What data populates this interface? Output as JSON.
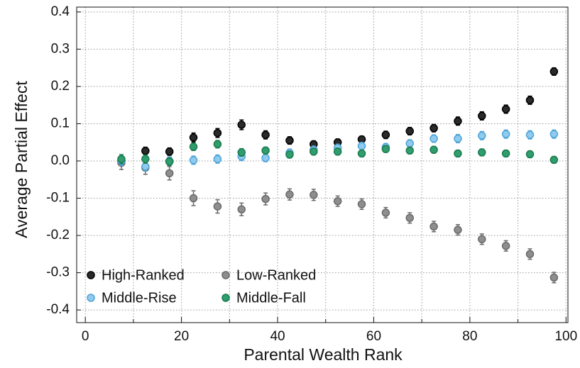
{
  "chart_data": {
    "type": "scatter",
    "x_label": "Parental Wealth Rank",
    "y_label": "Average Partial Effect",
    "x": [
      7.5,
      12.5,
      17.5,
      22.5,
      27.5,
      32.5,
      37.5,
      42.5,
      47.5,
      52.5,
      57.5,
      62.5,
      67.5,
      72.5,
      77.5,
      82.5,
      87.5,
      92.5,
      97.5
    ],
    "series": [
      {
        "name": "High-Ranked",
        "color": "#2a2a2a",
        "edge": "#000000",
        "values": [
          0.0,
          0.027,
          0.025,
          0.063,
          0.075,
          0.097,
          0.07,
          0.055,
          0.045,
          0.05,
          0.058,
          0.07,
          0.08,
          0.088,
          0.107,
          0.121,
          0.139,
          0.163,
          0.24
        ],
        "errors": [
          0.012,
          0.01,
          0.01,
          0.012,
          0.012,
          0.013,
          0.011,
          0.01,
          0.009,
          0.009,
          0.009,
          0.01,
          0.01,
          0.01,
          0.011,
          0.011,
          0.011,
          0.011,
          0.01
        ]
      },
      {
        "name": "Low-Ranked",
        "color": "#8e8e8e",
        "edge": "#6a6a6a",
        "values": [
          -0.005,
          -0.018,
          -0.033,
          -0.1,
          -0.122,
          -0.13,
          -0.102,
          -0.09,
          -0.091,
          -0.108,
          -0.116,
          -0.139,
          -0.153,
          -0.176,
          -0.185,
          -0.21,
          -0.228,
          -0.25,
          -0.313
        ],
        "errors": [
          0.018,
          0.018,
          0.018,
          0.02,
          0.018,
          0.017,
          0.016,
          0.015,
          0.015,
          0.014,
          0.014,
          0.014,
          0.014,
          0.014,
          0.014,
          0.014,
          0.014,
          0.014,
          0.014
        ]
      },
      {
        "name": "Middle-Rise",
        "color": "#8ecbee",
        "edge": "#4fa3d6",
        "values": [
          0.0,
          -0.015,
          0.0,
          0.002,
          0.005,
          0.012,
          0.008,
          0.022,
          0.03,
          0.035,
          0.04,
          0.037,
          0.047,
          0.06,
          0.06,
          0.068,
          0.072,
          0.07,
          0.072
        ],
        "errors": [
          0.012,
          0.012,
          0.011,
          0.011,
          0.011,
          0.011,
          0.01,
          0.01,
          0.01,
          0.01,
          0.01,
          0.01,
          0.01,
          0.01,
          0.011,
          0.011,
          0.011,
          0.011,
          0.011
        ]
      },
      {
        "name": "Middle-Fall",
        "color": "#2f9e6c",
        "edge": "#1b7a50",
        "values": [
          0.005,
          0.005,
          -0.002,
          0.038,
          0.045,
          0.023,
          0.028,
          0.017,
          0.025,
          0.025,
          0.02,
          0.032,
          0.028,
          0.03,
          0.02,
          0.023,
          0.02,
          0.018,
          0.003
        ],
        "errors": [
          0.012,
          0.011,
          0.01,
          0.01,
          0.01,
          0.01,
          0.009,
          0.009,
          0.009,
          0.009,
          0.009,
          0.009,
          0.009,
          0.009,
          0.009,
          0.009,
          0.009,
          0.009,
          0.009
        ]
      }
    ],
    "xlim": [
      -1.8,
      100.4
    ],
    "ylim": [
      -0.434,
      0.413
    ],
    "xticks": [
      0,
      20,
      40,
      60,
      80,
      100
    ],
    "x_minor_ticks": [
      10,
      30,
      50,
      70,
      90
    ],
    "yticks": [
      -0.4,
      -0.3,
      -0.2,
      -0.1,
      {
        "value": 0,
        "label": "0.0"
      },
      0.1,
      0.2,
      0.3,
      0.4
    ],
    "grid": true,
    "legend": "lower left"
  }
}
